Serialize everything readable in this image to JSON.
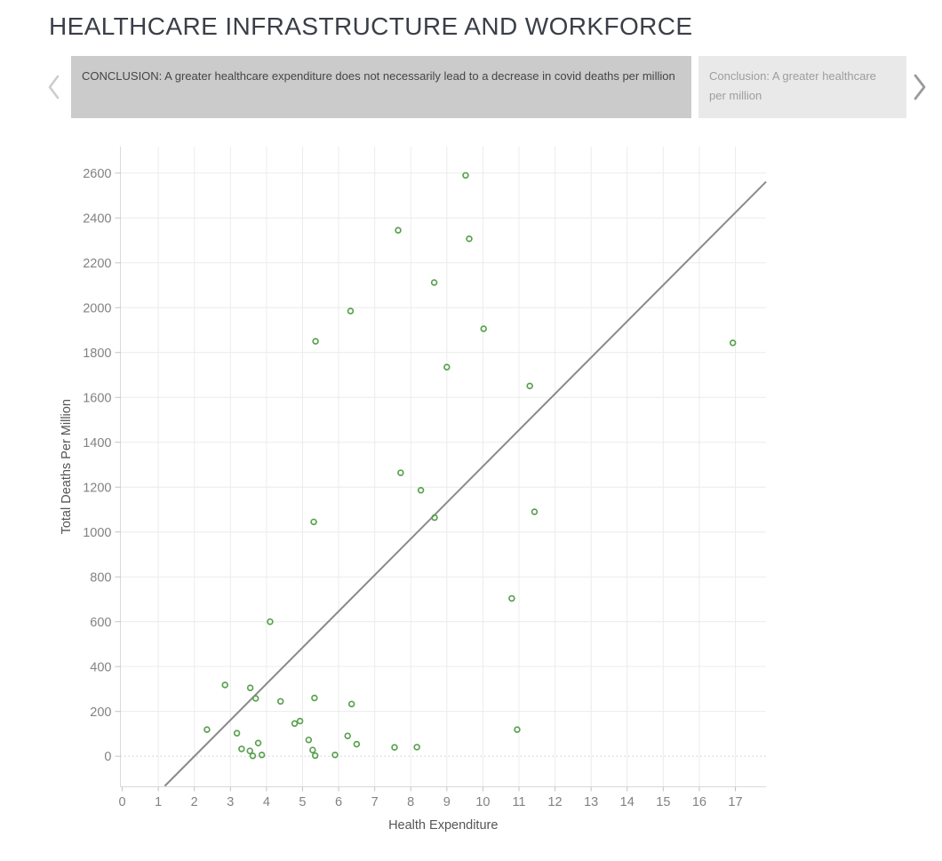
{
  "page": {
    "title": "HEALTHCARE INFRASTRUCTURE AND WORKFORCE"
  },
  "story_nav": {
    "active_caption": "CONCLUSION: A greater healthcare expenditure does not necessarily lead to a decrease in covid deaths per million",
    "next_caption_line1": "Conclusion: A greater healthcare",
    "next_caption_line2": "per million"
  },
  "colors": {
    "marker_green": "#59A14F",
    "trend_gray": "#8a8a8a",
    "gridline": "#ececec",
    "zero_line": "#c9c9c9",
    "axis_line": "#d9d9d9",
    "tick_mark": "#c4c4c4",
    "tick_label": "#828282",
    "axis_title": "#555555",
    "active_caption_bg": "#cbcbcb",
    "next_caption_bg": "#e9e9e9",
    "prev_arrow": "#cdcdcd",
    "next_arrow": "#9b9b9b"
  },
  "chart_data": {
    "type": "scatter",
    "title": "",
    "xlabel": "Health Expenditure",
    "ylabel": "Total Deaths Per Million",
    "xlim": [
      -0.05,
      17.85
    ],
    "ylim": [
      -136,
      2718
    ],
    "xticks": [
      0,
      1,
      2,
      3,
      4,
      5,
      6,
      7,
      8,
      9,
      10,
      11,
      12,
      13,
      14,
      15,
      16,
      17
    ],
    "yticks": [
      0,
      200,
      400,
      600,
      800,
      1000,
      1200,
      1400,
      1600,
      1800,
      2000,
      2200,
      2400,
      2600
    ],
    "grid": true,
    "zero_line_style": "dotted",
    "legend": "none",
    "marker": {
      "shape": "open-circle",
      "color": "#59A14F"
    },
    "trend_line": {
      "slope": 161.6,
      "intercept": -323.2,
      "x_range": [
        1.18,
        17.85
      ],
      "color": "#8a8a8a"
    },
    "points": [
      [
        2.35,
        119
      ],
      [
        2.85,
        318
      ],
      [
        3.18,
        103
      ],
      [
        3.31,
        33
      ],
      [
        3.54,
        24
      ],
      [
        3.55,
        305
      ],
      [
        3.62,
        2
      ],
      [
        3.7,
        258
      ],
      [
        3.77,
        59
      ],
      [
        3.87,
        6
      ],
      [
        4.1,
        600
      ],
      [
        4.39,
        245
      ],
      [
        4.78,
        146
      ],
      [
        4.93,
        157
      ],
      [
        5.17,
        73
      ],
      [
        5.28,
        28
      ],
      [
        5.31,
        1045
      ],
      [
        5.33,
        260
      ],
      [
        5.35,
        3
      ],
      [
        5.36,
        1850
      ],
      [
        5.9,
        6
      ],
      [
        6.25,
        91
      ],
      [
        6.33,
        1985
      ],
      [
        6.36,
        233
      ],
      [
        6.5,
        54
      ],
      [
        7.55,
        40
      ],
      [
        7.65,
        2345
      ],
      [
        7.72,
        1264
      ],
      [
        8.17,
        41
      ],
      [
        8.28,
        1186
      ],
      [
        8.65,
        2112
      ],
      [
        8.66,
        1064
      ],
      [
        9.0,
        1735
      ],
      [
        9.52,
        2590
      ],
      [
        9.62,
        2307
      ],
      [
        10.02,
        1906
      ],
      [
        10.8,
        704
      ],
      [
        10.95,
        119
      ],
      [
        11.3,
        1651
      ],
      [
        11.43,
        1090
      ],
      [
        16.93,
        1843
      ]
    ]
  }
}
